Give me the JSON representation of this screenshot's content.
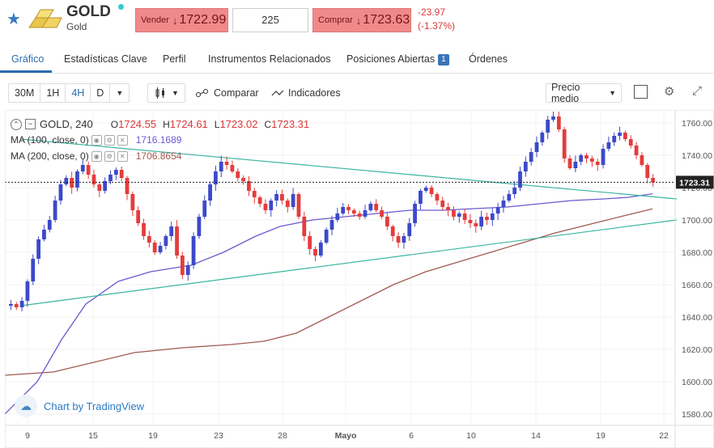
{
  "header": {
    "title": "GOLD",
    "subtitle": "Gold",
    "sell_label": "Vender",
    "sell_price": "1722.99",
    "quantity": "225",
    "buy_label": "Comprar",
    "buy_price": "1723.63",
    "change": "-23.97",
    "change_pct": "(-1.37%)",
    "arrow": "↓"
  },
  "tabs": [
    {
      "label": "Gráfico"
    },
    {
      "label": "Estadísticas Clave"
    },
    {
      "label": "Perfil"
    },
    {
      "label": "Instrumentos Relacionados"
    },
    {
      "label": "Posiciones Abiertas",
      "badge": "1"
    },
    {
      "label": "Órdenes"
    }
  ],
  "toolbar": {
    "intervals": [
      "30M",
      "1H",
      "4H",
      "D"
    ],
    "active_interval": "4H",
    "compare_label": "Comparar",
    "indicators_label": "Indicadores",
    "price_mode": "Precio medio"
  },
  "chart": {
    "symbol_label": "GOLD, 240",
    "o_label": "O",
    "o_value": "1724.55",
    "h_label": "H",
    "h_value": "1724.61",
    "l_label": "L",
    "l_value": "1723.02",
    "c_label": "C",
    "c_value": "1723.31",
    "ma100_label": "MA (100, close, 0)",
    "ma100_value": "1716.1689",
    "ma200_label": "MA (200, close, 0)",
    "ma200_value": "1706.8654",
    "current_price_tag": "1723.31",
    "watermark": "Chart by TradingView",
    "colors": {
      "up": "#3c49c9",
      "down": "#e53c3c",
      "ma100": "#6a5ad0",
      "ma200": "#a05a50",
      "trend": "#3ab5a0",
      "axis": "#555555"
    }
  },
  "chart_data": {
    "type": "line",
    "y_ticks": [
      "1760.00",
      "1740.00",
      "1720.00",
      "1700.00",
      "1680.00",
      "1660.00",
      "1640.00",
      "1620.00",
      "1600.00",
      "1580.00"
    ],
    "x_ticks": [
      "9",
      "15",
      "19",
      "23",
      "28",
      "Mayo",
      "6",
      "10",
      "14",
      "19",
      "22"
    ],
    "ylim": [
      1573,
      1768
    ],
    "price_path": [
      1648,
      1646,
      1650,
      1662,
      1676,
      1688,
      1694,
      1700,
      1712,
      1722,
      1726,
      1720,
      1730,
      1734,
      1728,
      1722,
      1718,
      1724,
      1728,
      1731,
      1726,
      1716,
      1706,
      1698,
      1690,
      1686,
      1680,
      1684,
      1690,
      1696,
      1678,
      1666,
      1672,
      1690,
      1702,
      1712,
      1722,
      1730,
      1736,
      1734,
      1730,
      1726,
      1724,
      1718,
      1714,
      1710,
      1706,
      1712,
      1716,
      1712,
      1708,
      1716,
      1702,
      1690,
      1682,
      1678,
      1686,
      1694,
      1700,
      1704,
      1708,
      1706,
      1704,
      1702,
      1706,
      1710,
      1706,
      1702,
      1696,
      1690,
      1686,
      1690,
      1698,
      1710,
      1718,
      1720,
      1716,
      1712,
      1708,
      1706,
      1702,
      1704,
      1700,
      1698,
      1696,
      1702,
      1700,
      1704,
      1708,
      1712,
      1716,
      1720,
      1730,
      1736,
      1742,
      1748,
      1754,
      1762,
      1764,
      1756,
      1738,
      1732,
      1736,
      1740,
      1738,
      1736,
      1734,
      1744,
      1748,
      1752,
      1754,
      1750,
      1746,
      1740,
      1734,
      1726,
      1723.31
    ],
    "ma100_path": [
      [
        0,
        1580
      ],
      [
        40,
        1600
      ],
      [
        70,
        1626
      ],
      [
        100,
        1648
      ],
      [
        140,
        1662
      ],
      [
        180,
        1668
      ],
      [
        230,
        1672
      ],
      [
        270,
        1680
      ],
      [
        310,
        1690
      ],
      [
        340,
        1696
      ],
      [
        380,
        1700
      ],
      [
        420,
        1702
      ],
      [
        460,
        1704
      ],
      [
        500,
        1706
      ],
      [
        540,
        1706
      ],
      [
        580,
        1707
      ],
      [
        620,
        1708
      ],
      [
        660,
        1710
      ],
      [
        700,
        1712
      ],
      [
        740,
        1713
      ],
      [
        770,
        1714
      ],
      [
        800,
        1716.17
      ]
    ],
    "ma200_path": [
      [
        0,
        1604
      ],
      [
        60,
        1606
      ],
      [
        110,
        1612
      ],
      [
        160,
        1618
      ],
      [
        220,
        1621
      ],
      [
        280,
        1623
      ],
      [
        320,
        1625
      ],
      [
        360,
        1630
      ],
      [
        400,
        1640
      ],
      [
        440,
        1650
      ],
      [
        480,
        1660
      ],
      [
        520,
        1668
      ],
      [
        560,
        1674
      ],
      [
        600,
        1680
      ],
      [
        640,
        1686
      ],
      [
        680,
        1692
      ],
      [
        720,
        1697
      ],
      [
        760,
        1702
      ],
      [
        800,
        1706.87
      ]
    ],
    "trend_upper": [
      [
        20,
        1750
      ],
      [
        830,
        1713
      ]
    ],
    "trend_lower": [
      [
        20,
        1647
      ],
      [
        830,
        1700
      ]
    ]
  }
}
